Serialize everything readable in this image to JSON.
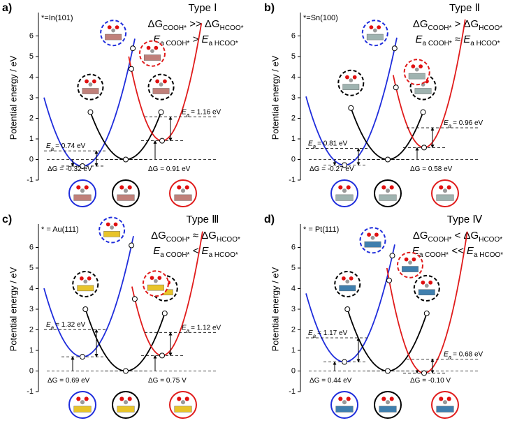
{
  "chart_data": [
    {
      "type": "potential_energy",
      "label": "a)",
      "surface": "*=In(101)",
      "type_label": "Type Ⅰ",
      "condition": [
        [
          {
            "text": "ΔG"
          },
          {
            "sub": "COOH*"
          },
          {
            "text": " >> ΔG"
          },
          {
            "sub": "HCOO*"
          }
        ],
        [
          {
            "text": "E"
          },
          {
            "sub": "a COOH*"
          },
          {
            "text": " > E"
          },
          {
            "sub": "a HCOO*"
          }
        ]
      ],
      "ylabel": "Potential energy / eV",
      "ylim": [
        -1,
        7
      ],
      "yticks": [
        -1,
        0,
        1,
        2,
        3,
        4,
        5,
        6
      ],
      "slab_color": "#c0807a",
      "series": [
        {
          "color": "#1f2ddc",
          "minimum": -0.32,
          "points": [
            5.4
          ]
        },
        {
          "color": "#000000",
          "minimum": 0,
          "points": [
            2.3,
            2.3
          ]
        },
        {
          "color": "#e01b1b",
          "minimum": 0.91,
          "points": [
            4.4
          ]
        }
      ],
      "barrier_symbol": "E",
      "barrier_sub": "a",
      "barriers": [
        {
          "value": 0.74,
          "label": "= 0.74 eV"
        },
        {
          "value": 1.16,
          "label": "= 1.16 eV"
        }
      ],
      "reaction_energies": [
        {
          "value": -0.32,
          "label": "ΔG = -0.32 eV"
        },
        {
          "value": 0.91,
          "label": "ΔG = 0.91 eV"
        }
      ]
    },
    {
      "type": "potential_energy",
      "label": "b)",
      "surface": "*=Sn(100)",
      "type_label": "Type Ⅱ",
      "condition": [
        [
          {
            "text": "ΔG"
          },
          {
            "sub": "COOH*"
          },
          {
            "text": " > ΔG"
          },
          {
            "sub": "HCOO*"
          }
        ],
        [
          {
            "text": "E"
          },
          {
            "sub": "a COOH*"
          },
          {
            "text": " ≈ E"
          },
          {
            "sub": "a HCOO*"
          }
        ]
      ],
      "ylabel": "Potential energy / eV",
      "ylim": [
        -1,
        7
      ],
      "yticks": [
        -1,
        0,
        1,
        2,
        3,
        4,
        5,
        6
      ],
      "slab_color": "#9fb3b0",
      "series": [
        {
          "color": "#1f2ddc",
          "minimum": -0.27,
          "points": [
            5.4
          ]
        },
        {
          "color": "#000000",
          "minimum": 0,
          "points": [
            2.5,
            2.3
          ]
        },
        {
          "color": "#e01b1b",
          "minimum": 0.58,
          "points": [
            3.5
          ]
        }
      ],
      "barrier_symbol": "E",
      "barrier_sub": "a",
      "barriers": [
        {
          "value": 0.81,
          "label": "= 0.81 eV"
        },
        {
          "value": 0.96,
          "label": "= 0.96 eV"
        }
      ],
      "reaction_energies": [
        {
          "value": -0.27,
          "label": "ΔG = -0.27 eV"
        },
        {
          "value": 0.58,
          "label": "ΔG = 0.58 eV"
        }
      ]
    },
    {
      "type": "potential_energy",
      "label": "c)",
      "surface": "* = Au(111)",
      "type_label": "Type Ⅲ",
      "condition": [
        [
          {
            "text": "ΔG"
          },
          {
            "sub": "COOH*"
          },
          {
            "text": " ≈ ΔG"
          },
          {
            "sub": "HCOO*"
          }
        ],
        [
          {
            "text": "E"
          },
          {
            "sub": "a COOH*"
          },
          {
            "text": " < E"
          },
          {
            "sub": "a HCOO*"
          }
        ]
      ],
      "ylabel": "Potential energy / eV",
      "ylim": [
        -1,
        7
      ],
      "yticks": [
        -1,
        0,
        1,
        2,
        3,
        4,
        5,
        6
      ],
      "slab_color": "#e8c42a",
      "series": [
        {
          "color": "#1f2ddc",
          "minimum": 0.69,
          "points": [
            6.1
          ]
        },
        {
          "color": "#000000",
          "minimum": 0,
          "points": [
            3.0,
            2.8
          ]
        },
        {
          "color": "#e01b1b",
          "minimum": 0.75,
          "points": [
            3.5
          ]
        }
      ],
      "barrier_symbol": "E",
      "barrier_sub": "a",
      "barriers": [
        {
          "value": 1.32,
          "label": "= 1.32 eV"
        },
        {
          "value": 1.12,
          "label": "= 1.12 eV"
        }
      ],
      "reaction_energies": [
        {
          "value": 0.69,
          "label": "ΔG = 0.69 eV"
        },
        {
          "value": 0.75,
          "label": "ΔG = 0.75 V"
        }
      ]
    },
    {
      "type": "potential_energy",
      "label": "d)",
      "surface": "* = Pt(111)",
      "type_label": "Type Ⅳ",
      "condition": [
        [
          {
            "text": "ΔG"
          },
          {
            "sub": "COOH*"
          },
          {
            "text": " < ΔG"
          },
          {
            "sub": "HCOO*"
          }
        ],
        [
          {
            "text": "E"
          },
          {
            "sub": "a COOH*"
          },
          {
            "text": " << E"
          },
          {
            "sub": "a HCOO*"
          }
        ]
      ],
      "ylabel": "Potential energy / eV",
      "ylim": [
        -1,
        7
      ],
      "yticks": [
        -1,
        0,
        1,
        2,
        3,
        4,
        5,
        6
      ],
      "slab_color": "#3f7fae",
      "series": [
        {
          "color": "#1f2ddc",
          "minimum": 0.44,
          "points": [
            5.6
          ]
        },
        {
          "color": "#000000",
          "minimum": 0,
          "points": [
            3.0,
            2.8
          ]
        },
        {
          "color": "#e01b1b",
          "minimum": -0.1,
          "points": [
            4.4
          ]
        }
      ],
      "barrier_symbol": "E",
      "barrier_sub": "a",
      "barriers": [
        {
          "value": 1.17,
          "label": "= 1.17 eV"
        },
        {
          "value": 0.68,
          "label": "= 0.68 eV"
        }
      ],
      "reaction_energies": [
        {
          "value": 0.44,
          "label": "ΔG = 0.44 eV"
        },
        {
          "value": -0.1,
          "label": "ΔG = -0.10 V"
        }
      ]
    }
  ]
}
